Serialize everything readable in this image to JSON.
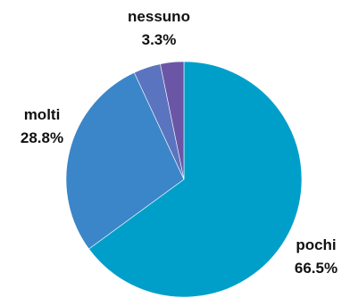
{
  "chart_data": {
    "type": "pie",
    "title": "",
    "start_angle_deg": 0,
    "direction": "clockwise",
    "slices": [
      {
        "label": "pochi",
        "value": 66.5,
        "display": "66.5%",
        "color": "#009fc9"
      },
      {
        "label": "molti",
        "value": 28.8,
        "display": "28.8%",
        "color": "#3b86c8"
      },
      {
        "label": "",
        "value": 3.8,
        "display": "",
        "color": "#5b74bf"
      },
      {
        "label": "nessuno",
        "value": 3.3,
        "display": "3.3%",
        "color": "#6b56a6"
      }
    ],
    "legend": "none"
  }
}
